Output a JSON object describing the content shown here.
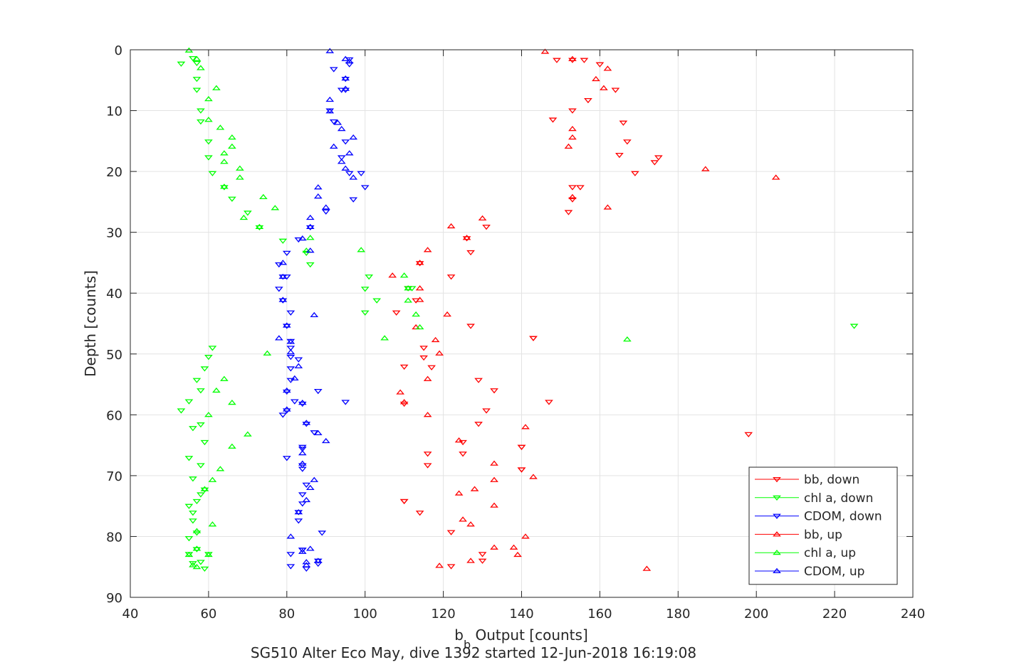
{
  "chart_data": {
    "type": "scatter",
    "title": "",
    "xlabel": "b",
    "xlabel_sub": "b",
    "xlabel_rest": " Output [counts]",
    "ylabel": "Depth [counts]",
    "caption": "SG510 Alter Eco May, dive 1392 started 12-Jun-2018 16:19:08",
    "xlim": [
      40,
      240
    ],
    "ylim": [
      0,
      90
    ],
    "y_reversed": true,
    "xticks": [
      40,
      60,
      80,
      100,
      120,
      140,
      160,
      180,
      200,
      220,
      240
    ],
    "yticks": [
      0,
      10,
      20,
      30,
      40,
      50,
      60,
      70,
      80,
      90
    ],
    "grid": true,
    "legend_position": "bottom-right",
    "series": [
      {
        "name": "bb, down",
        "color": "#ff0000",
        "marker": "triangle-down",
        "points": [
          [
            149,
            1.7
          ],
          [
            153,
            1.7
          ],
          [
            156,
            1.7
          ],
          [
            160,
            2.4
          ],
          [
            164,
            6.6
          ],
          [
            157,
            8.3
          ],
          [
            153,
            10
          ],
          [
            148,
            11.5
          ],
          [
            166,
            12
          ],
          [
            167,
            15.1
          ],
          [
            165,
            17.3
          ],
          [
            175,
            17.7
          ],
          [
            174,
            18.5
          ],
          [
            169,
            20.3
          ],
          [
            155,
            22.6
          ],
          [
            153,
            22.6
          ],
          [
            153,
            24.6
          ],
          [
            152,
            26.7
          ],
          [
            131,
            29.1
          ],
          [
            126,
            31
          ],
          [
            114,
            35.1
          ],
          [
            127,
            33.3
          ],
          [
            122,
            37.3
          ],
          [
            111,
            39.2
          ],
          [
            113,
            41.2
          ],
          [
            108,
            43.2
          ],
          [
            127,
            45.4
          ],
          [
            143,
            47.4
          ],
          [
            115,
            49
          ],
          [
            115,
            50.6
          ],
          [
            117,
            52.2
          ],
          [
            110,
            52.1
          ],
          [
            129,
            54.3
          ],
          [
            133,
            56
          ],
          [
            147,
            57.9
          ],
          [
            110,
            58.2
          ],
          [
            131,
            59.3
          ],
          [
            129,
            61.5
          ],
          [
            198,
            63.2
          ],
          [
            140,
            65.3
          ],
          [
            125,
            64.5
          ],
          [
            125,
            66.4
          ],
          [
            140,
            69
          ],
          [
            116,
            66.4
          ],
          [
            116,
            68.3
          ],
          [
            140,
            69
          ],
          [
            110,
            74.2
          ],
          [
            114,
            76.1
          ],
          [
            122,
            79.3
          ],
          [
            130,
            82.9
          ],
          [
            130,
            84
          ],
          [
            122,
            84.9
          ],
          [
            140,
            65.3
          ],
          [
            143,
            47.4
          ],
          [
            110,
            74.2
          ]
        ]
      },
      {
        "name": "chl a, down",
        "color": "#00ff00",
        "marker": "triangle-down",
        "points": [
          [
            53,
            2.3
          ],
          [
            56,
            1.4
          ],
          [
            57,
            2.2
          ],
          [
            57,
            4.8
          ],
          [
            57,
            6.6
          ],
          [
            58,
            10
          ],
          [
            58,
            11.8
          ],
          [
            60,
            15.1
          ],
          [
            60,
            17.7
          ],
          [
            61,
            20.3
          ],
          [
            64,
            22.6
          ],
          [
            66,
            24.5
          ],
          [
            70,
            26.8
          ],
          [
            73,
            29.2
          ],
          [
            79,
            31.4
          ],
          [
            85,
            33.4
          ],
          [
            86,
            35.3
          ],
          [
            101,
            37.3
          ],
          [
            100,
            39.3
          ],
          [
            103,
            41.2
          ],
          [
            100,
            43.2
          ],
          [
            112,
            39.2
          ],
          [
            111,
            39.2
          ],
          [
            225,
            45.4
          ],
          [
            61,
            49
          ],
          [
            60,
            50.5
          ],
          [
            59,
            52.4
          ],
          [
            57,
            54.3
          ],
          [
            58,
            56
          ],
          [
            55,
            57.8
          ],
          [
            53,
            59.3
          ],
          [
            56,
            62.2
          ],
          [
            58,
            61.6
          ],
          [
            59,
            64.5
          ],
          [
            55,
            67.1
          ],
          [
            58,
            68.3
          ],
          [
            56,
            70.5
          ],
          [
            59,
            72.3
          ],
          [
            58,
            73.1
          ],
          [
            57,
            74.2
          ],
          [
            55,
            75
          ],
          [
            56,
            76.1
          ],
          [
            56,
            77.4
          ],
          [
            57,
            79.4
          ],
          [
            55,
            80.3
          ],
          [
            57,
            82.1
          ],
          [
            55,
            82.9
          ],
          [
            56,
            84.4
          ],
          [
            58,
            84.2
          ],
          [
            59,
            85.3
          ],
          [
            60,
            82.9
          ]
        ]
      },
      {
        "name": "CDOM, down",
        "color": "#0000ff",
        "marker": "triangle-down",
        "points": [
          [
            96,
            1.6
          ],
          [
            96,
            2.4
          ],
          [
            92,
            3.2
          ],
          [
            95,
            4.8
          ],
          [
            95,
            6.6
          ],
          [
            94,
            6.6
          ],
          [
            91,
            10
          ],
          [
            92,
            11.8
          ],
          [
            95,
            15.1
          ],
          [
            94,
            17.7
          ],
          [
            96,
            20.3
          ],
          [
            99,
            20.3
          ],
          [
            100,
            22.6
          ],
          [
            97,
            24.6
          ],
          [
            90,
            26.6
          ],
          [
            86,
            29.2
          ],
          [
            83,
            31.2
          ],
          [
            80,
            33.4
          ],
          [
            78,
            35.3
          ],
          [
            80,
            37.3
          ],
          [
            79,
            37.3
          ],
          [
            78,
            39.3
          ],
          [
            79,
            41.2
          ],
          [
            81,
            43.2
          ],
          [
            80,
            45.4
          ],
          [
            81,
            47.9
          ],
          [
            81,
            49
          ],
          [
            81,
            50.5
          ],
          [
            83,
            50.9
          ],
          [
            81,
            52.4
          ],
          [
            81,
            54.3
          ],
          [
            80,
            56.2
          ],
          [
            82,
            57.8
          ],
          [
            80,
            59.3
          ],
          [
            79,
            60
          ],
          [
            85,
            61.5
          ],
          [
            87,
            62.9
          ],
          [
            84,
            65.3
          ],
          [
            84,
            65.6
          ],
          [
            80,
            67.1
          ],
          [
            84,
            68.3
          ],
          [
            84,
            68.9
          ],
          [
            85,
            71.5
          ],
          [
            84,
            73.1
          ],
          [
            84,
            74.6
          ],
          [
            83,
            76
          ],
          [
            83,
            77.4
          ],
          [
            89,
            79.4
          ],
          [
            81,
            82.9
          ],
          [
            84,
            82.2
          ],
          [
            84,
            82.2
          ],
          [
            88,
            84
          ],
          [
            88,
            84.5
          ],
          [
            81,
            84.9
          ],
          [
            85,
            85.3
          ],
          [
            95,
            57.9
          ],
          [
            84,
            58.2
          ],
          [
            88,
            56.1
          ]
        ]
      },
      {
        "name": "bb, up",
        "color": "#ff0000",
        "marker": "triangle-up",
        "points": [
          [
            146,
            0.3
          ],
          [
            153,
            1.5
          ],
          [
            162,
            3.1
          ],
          [
            159,
            4.8
          ],
          [
            161,
            6.3
          ],
          [
            153,
            13
          ],
          [
            153,
            14.4
          ],
          [
            152,
            15.9
          ],
          [
            187,
            19.6
          ],
          [
            205,
            21
          ],
          [
            153,
            24.2
          ],
          [
            162,
            25.9
          ],
          [
            130,
            27.7
          ],
          [
            122,
            29
          ],
          [
            126,
            30.9
          ],
          [
            116,
            32.9
          ],
          [
            107,
            37.1
          ],
          [
            114,
            35
          ],
          [
            114,
            39.2
          ],
          [
            114,
            41.1
          ],
          [
            121,
            43.5
          ],
          [
            113,
            45.6
          ],
          [
            118,
            47.7
          ],
          [
            119,
            49.9
          ],
          [
            116,
            54.1
          ],
          [
            109,
            56.3
          ],
          [
            116,
            60
          ],
          [
            141,
            62
          ],
          [
            110,
            57.9
          ],
          [
            124,
            64.2
          ],
          [
            133,
            68
          ],
          [
            143,
            70.2
          ],
          [
            133,
            70.7
          ],
          [
            128,
            72.2
          ],
          [
            124,
            72.9
          ],
          [
            125,
            77.2
          ],
          [
            127,
            78
          ],
          [
            133,
            74.9
          ],
          [
            141,
            80
          ],
          [
            133,
            81.8
          ],
          [
            138,
            81.8
          ],
          [
            139,
            83
          ],
          [
            127,
            84
          ],
          [
            119,
            84.8
          ],
          [
            172,
            85.3
          ]
        ]
      },
      {
        "name": "chl a, up",
        "color": "#00ff00",
        "marker": "triangle-up",
        "points": [
          [
            55,
            0.1
          ],
          [
            57,
            1.5
          ],
          [
            58,
            3
          ],
          [
            62,
            6.3
          ],
          [
            60,
            8.1
          ],
          [
            60,
            11.5
          ],
          [
            63,
            12.8
          ],
          [
            66,
            14.4
          ],
          [
            66,
            15.9
          ],
          [
            64,
            17
          ],
          [
            64,
            18.4
          ],
          [
            68,
            19.5
          ],
          [
            68,
            21
          ],
          [
            64,
            22.5
          ],
          [
            74,
            24.2
          ],
          [
            77,
            26
          ],
          [
            69,
            27.6
          ],
          [
            73,
            29.1
          ],
          [
            86,
            30.9
          ],
          [
            85,
            33
          ],
          [
            99,
            32.9
          ],
          [
            110,
            37.1
          ],
          [
            111,
            39.2
          ],
          [
            111,
            41.2
          ],
          [
            113,
            43.5
          ],
          [
            114,
            45.6
          ],
          [
            105,
            47.4
          ],
          [
            167,
            47.6
          ],
          [
            75,
            49.9
          ],
          [
            64,
            54.1
          ],
          [
            62,
            56
          ],
          [
            66,
            58
          ],
          [
            60,
            60
          ],
          [
            70,
            63.2
          ],
          [
            66,
            65.2
          ],
          [
            63,
            68.9
          ],
          [
            61,
            70.7
          ],
          [
            59,
            72.2
          ],
          [
            57,
            79.1
          ],
          [
            61,
            78
          ],
          [
            57,
            82
          ],
          [
            55,
            83
          ],
          [
            56,
            84.7
          ],
          [
            57,
            85
          ],
          [
            60,
            83
          ]
        ]
      },
      {
        "name": "CDOM, up",
        "color": "#0000ff",
        "marker": "triangle-up",
        "points": [
          [
            91,
            0.2
          ],
          [
            95,
            1.5
          ],
          [
            96,
            1.9
          ],
          [
            95,
            4.7
          ],
          [
            95,
            6.4
          ],
          [
            91,
            8.2
          ],
          [
            91,
            10.1
          ],
          [
            93,
            12
          ],
          [
            94,
            13
          ],
          [
            97,
            14.4
          ],
          [
            92,
            15.9
          ],
          [
            96,
            17
          ],
          [
            94,
            18.4
          ],
          [
            95,
            19.5
          ],
          [
            97,
            21
          ],
          [
            88,
            22.6
          ],
          [
            88,
            24.1
          ],
          [
            90,
            25.9
          ],
          [
            86,
            27.6
          ],
          [
            86,
            29.1
          ],
          [
            84,
            31
          ],
          [
            86,
            33
          ],
          [
            79,
            35
          ],
          [
            79,
            37.3
          ],
          [
            79,
            41.1
          ],
          [
            87,
            43.6
          ],
          [
            80,
            45.3
          ],
          [
            78,
            47.4
          ],
          [
            81,
            48
          ],
          [
            81,
            49.7
          ],
          [
            83,
            52
          ],
          [
            82,
            54
          ],
          [
            80,
            56
          ],
          [
            80,
            59.1
          ],
          [
            84,
            58
          ],
          [
            85,
            61.3
          ],
          [
            88,
            63
          ],
          [
            90,
            64.3
          ],
          [
            84,
            66.3
          ],
          [
            84,
            68
          ],
          [
            87,
            70.7
          ],
          [
            86,
            72
          ],
          [
            85,
            74
          ],
          [
            83,
            76
          ],
          [
            81,
            80
          ],
          [
            84,
            82.5
          ],
          [
            86,
            82
          ],
          [
            85,
            84.2
          ],
          [
            88,
            84
          ],
          [
            85,
            84.7
          ]
        ]
      }
    ]
  }
}
